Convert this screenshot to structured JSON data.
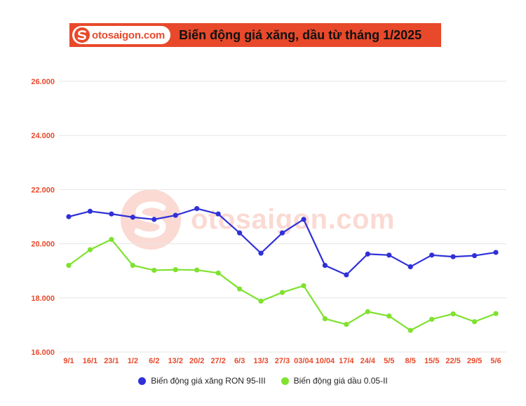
{
  "header": {
    "brand": "otosaigon.com",
    "title": "Biến động giá xăng, dầu từ tháng 1/2025"
  },
  "watermark": {
    "text": "otosaigon.com"
  },
  "colors": {
    "accent": "#e8492b",
    "series1": "#3030d8",
    "series2": "#7ee22e"
  },
  "chart_data": {
    "type": "line",
    "title": "Biến động giá xăng, dầu từ tháng 1/2025",
    "ylim": [
      16000,
      26000
    ],
    "yticks": [
      16000,
      18000,
      20000,
      22000,
      24000,
      26000
    ],
    "ytick_labels": [
      "16.000",
      "18.000",
      "20.000",
      "22.000",
      "24.000",
      "26.000"
    ],
    "grid": true,
    "legend_position": "bottom",
    "categories": [
      "9/1",
      "16/1",
      "23/1",
      "1/2",
      "6/2",
      "13/2",
      "20/2",
      "27/2",
      "6/3",
      "13/3",
      "27/3",
      "03/04",
      "10/04",
      "17/4",
      "24/4",
      "5/5",
      "8/5",
      "15/5",
      "22/5",
      "29/5",
      "5/6"
    ],
    "series": [
      {
        "name": "Biến động giá xăng RON 95-III",
        "color": "#3030d8",
        "values": [
          21000,
          21200,
          21100,
          20980,
          20900,
          21050,
          21300,
          21100,
          20400,
          19650,
          20400,
          20900,
          19200,
          18850,
          19620,
          19580,
          19150,
          19580,
          19520,
          19560,
          19680
        ]
      },
      {
        "name": "Biến động giá dầu 0.05-II",
        "color": "#7ee22e",
        "values": [
          19200,
          19780,
          20160,
          19200,
          19020,
          19040,
          19030,
          18920,
          18330,
          17880,
          18200,
          18450,
          17230,
          17020,
          17490,
          17330,
          16800,
          17210,
          17410,
          17120,
          17420
        ]
      }
    ]
  }
}
